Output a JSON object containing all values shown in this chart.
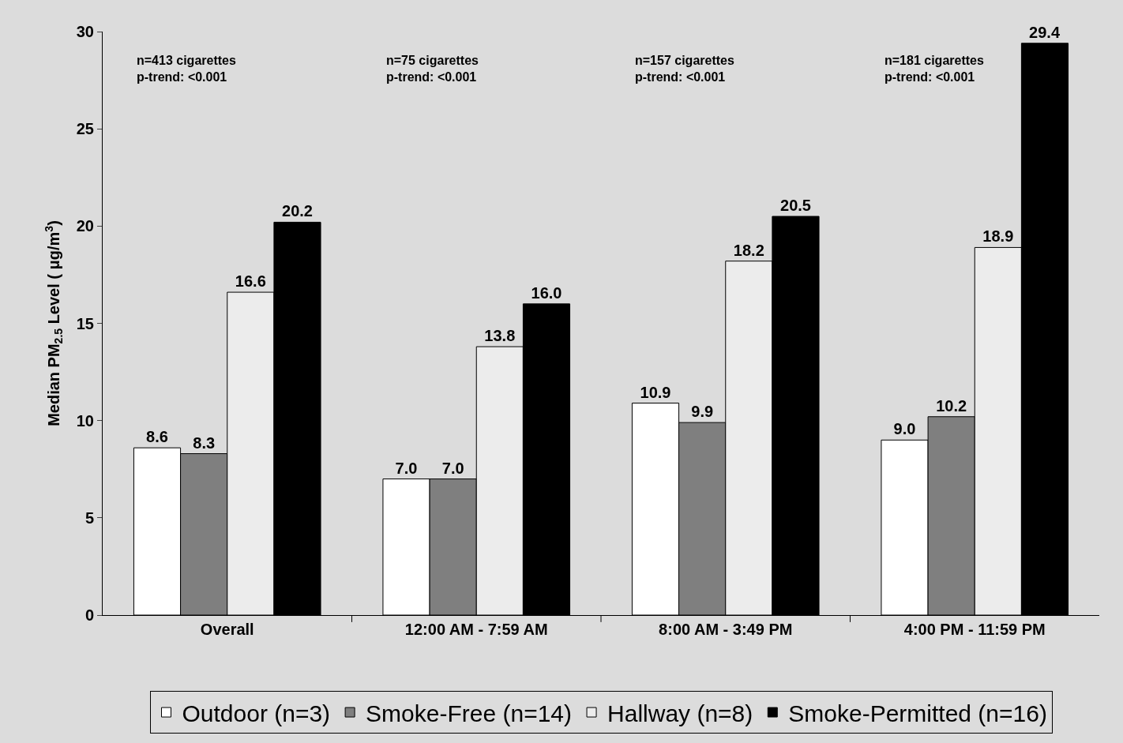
{
  "chart_data": {
    "type": "bar",
    "ylabel": "Median PM$_{2.5}$ Level ( μg/m$^{3}$)",
    "categories": [
      "Overall",
      "12:00 AM - 7:59 AM",
      "8:00 AM - 3:49 PM",
      "4:00 PM - 11:59 PM"
    ],
    "series": [
      {
        "name": "Outdoor (n=3)",
        "color": "#ffffff",
        "values": [
          8.6,
          7.0,
          10.9,
          9.0
        ],
        "value_labels": [
          "8.6",
          "7.0",
          "10.9",
          "9.0"
        ]
      },
      {
        "name": "Smoke-Free (n=14)",
        "color": "#7f7f7f",
        "values": [
          8.3,
          7.0,
          9.9,
          10.2
        ],
        "value_labels": [
          "8.3",
          "7.0",
          "9.9",
          "10.2"
        ]
      },
      {
        "name": "Hallway (n=8)",
        "color": "#ececec",
        "values": [
          16.6,
          13.8,
          18.2,
          18.9
        ],
        "value_labels": [
          "16.6",
          "13.8",
          "18.2",
          "18.9"
        ]
      },
      {
        "name": "Smoke-Permitted (n=16)",
        "color": "#000000",
        "values": [
          20.2,
          16.0,
          20.5,
          29.4
        ],
        "value_labels": [
          "20.2",
          "16.0",
          "20.5",
          "29.4"
        ]
      }
    ],
    "annotations": [
      "n=413 cigarettes\np-trend: <0.001",
      "n=75 cigarettes\np-trend: <0.001",
      "n=157 cigarettes\np-trend: <0.001",
      "n=181 cigarettes\np-trend: <0.001"
    ],
    "ylim": [
      0,
      30
    ],
    "yticks": [
      0,
      5,
      10,
      15,
      20,
      25,
      30
    ],
    "grid": false,
    "legend": "bottom"
  }
}
